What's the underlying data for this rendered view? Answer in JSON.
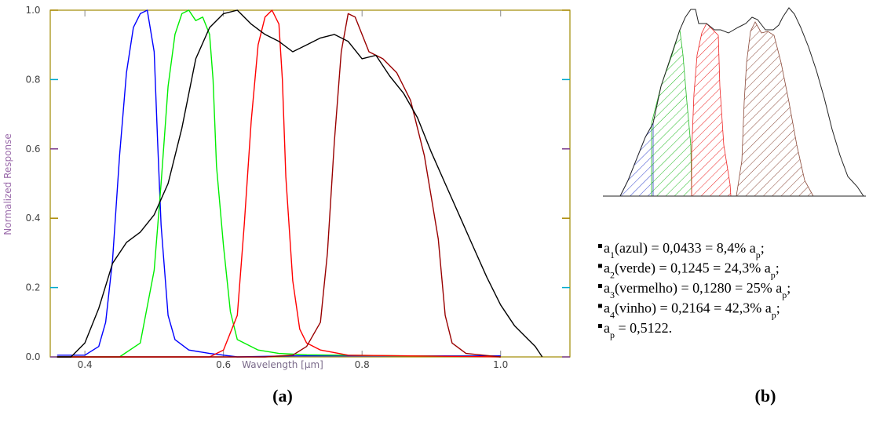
{
  "chart_data": [
    {
      "type": "line",
      "xlabel": "Wavelength [μm]",
      "ylabel": "Normalized Response",
      "xlim": [
        0.35,
        1.1
      ],
      "ylim": [
        0,
        1.0
      ],
      "x_ticks": [
        "0.4",
        "0.6",
        "0.8",
        "1.0"
      ],
      "y_ticks": [
        "0.0",
        "0.2",
        "0.4",
        "0.6",
        "0.8",
        "1.0"
      ],
      "grid": false,
      "series": [
        {
          "color": "#0000ff",
          "points": [
            [
              0.36,
              0.005
            ],
            [
              0.4,
              0.005
            ],
            [
              0.42,
              0.03
            ],
            [
              0.43,
              0.1
            ],
            [
              0.44,
              0.28
            ],
            [
              0.45,
              0.58
            ],
            [
              0.46,
              0.82
            ],
            [
              0.47,
              0.95
            ],
            [
              0.48,
              0.99
            ],
            [
              0.49,
              1.0
            ],
            [
              0.5,
              0.88
            ],
            [
              0.505,
              0.62
            ],
            [
              0.51,
              0.38
            ],
            [
              0.52,
              0.12
            ],
            [
              0.53,
              0.05
            ],
            [
              0.55,
              0.02
            ],
            [
              0.58,
              0.01
            ],
            [
              0.62,
              0.0
            ],
            [
              0.7,
              0.003
            ],
            [
              1.0,
              0.003
            ]
          ]
        },
        {
          "color": "#00ee00",
          "points": [
            [
              0.36,
              0.0
            ],
            [
              0.45,
              0.0
            ],
            [
              0.48,
              0.04
            ],
            [
              0.5,
              0.25
            ],
            [
              0.51,
              0.5
            ],
            [
              0.52,
              0.78
            ],
            [
              0.53,
              0.93
            ],
            [
              0.54,
              0.99
            ],
            [
              0.55,
              1.0
            ],
            [
              0.56,
              0.97
            ],
            [
              0.57,
              0.98
            ],
            [
              0.58,
              0.93
            ],
            [
              0.585,
              0.8
            ],
            [
              0.59,
              0.55
            ],
            [
              0.6,
              0.32
            ],
            [
              0.61,
              0.13
            ],
            [
              0.62,
              0.05
            ],
            [
              0.65,
              0.02
            ],
            [
              0.68,
              0.01
            ],
            [
              0.72,
              0.006
            ],
            [
              1.0,
              0.0
            ]
          ]
        },
        {
          "color": "#ff0000",
          "points": [
            [
              0.36,
              0.0
            ],
            [
              0.58,
              0.0
            ],
            [
              0.6,
              0.02
            ],
            [
              0.62,
              0.12
            ],
            [
              0.63,
              0.38
            ],
            [
              0.64,
              0.68
            ],
            [
              0.65,
              0.9
            ],
            [
              0.66,
              0.98
            ],
            [
              0.67,
              1.0
            ],
            [
              0.68,
              0.96
            ],
            [
              0.685,
              0.8
            ],
            [
              0.69,
              0.52
            ],
            [
              0.7,
              0.22
            ],
            [
              0.71,
              0.08
            ],
            [
              0.72,
              0.04
            ],
            [
              0.74,
              0.02
            ],
            [
              0.78,
              0.005
            ],
            [
              1.0,
              0.0
            ]
          ]
        },
        {
          "color": "#990000",
          "points": [
            [
              0.36,
              0.0
            ],
            [
              0.66,
              0.0
            ],
            [
              0.7,
              0.005
            ],
            [
              0.72,
              0.03
            ],
            [
              0.74,
              0.1
            ],
            [
              0.75,
              0.3
            ],
            [
              0.76,
              0.62
            ],
            [
              0.77,
              0.88
            ],
            [
              0.78,
              0.99
            ],
            [
              0.79,
              0.98
            ],
            [
              0.8,
              0.93
            ],
            [
              0.81,
              0.88
            ],
            [
              0.83,
              0.86
            ],
            [
              0.85,
              0.82
            ],
            [
              0.87,
              0.74
            ],
            [
              0.89,
              0.58
            ],
            [
              0.91,
              0.34
            ],
            [
              0.92,
              0.12
            ],
            [
              0.93,
              0.04
            ],
            [
              0.95,
              0.01
            ],
            [
              1.0,
              0.0
            ]
          ]
        },
        {
          "color": "#000000",
          "points": [
            [
              0.36,
              0.0
            ],
            [
              0.38,
              0.0
            ],
            [
              0.4,
              0.04
            ],
            [
              0.42,
              0.14
            ],
            [
              0.44,
              0.27
            ],
            [
              0.46,
              0.33
            ],
            [
              0.48,
              0.36
            ],
            [
              0.5,
              0.41
            ],
            [
              0.52,
              0.5
            ],
            [
              0.54,
              0.66
            ],
            [
              0.56,
              0.86
            ],
            [
              0.58,
              0.95
            ],
            [
              0.6,
              0.99
            ],
            [
              0.62,
              1.0
            ],
            [
              0.64,
              0.96
            ],
            [
              0.66,
              0.93
            ],
            [
              0.68,
              0.91
            ],
            [
              0.7,
              0.88
            ],
            [
              0.72,
              0.9
            ],
            [
              0.74,
              0.92
            ],
            [
              0.76,
              0.93
            ],
            [
              0.78,
              0.91
            ],
            [
              0.8,
              0.86
            ],
            [
              0.82,
              0.87
            ],
            [
              0.84,
              0.81
            ],
            [
              0.86,
              0.76
            ],
            [
              0.88,
              0.69
            ],
            [
              0.9,
              0.59
            ],
            [
              0.92,
              0.5
            ],
            [
              0.94,
              0.41
            ],
            [
              0.96,
              0.32
            ],
            [
              0.98,
              0.23
            ],
            [
              1.0,
              0.15
            ],
            [
              1.02,
              0.09
            ],
            [
              1.04,
              0.05
            ],
            [
              1.05,
              0.03
            ],
            [
              1.06,
              0.0
            ]
          ]
        }
      ]
    },
    {
      "type": "area",
      "shaded_regions": [
        {
          "name": "a1(azul)",
          "color": "#3344cc"
        },
        {
          "name": "a2(verde)",
          "color": "#22bb22"
        },
        {
          "name": "a3(vermelho)",
          "color": "#ee2222"
        },
        {
          "name": "a4(vinho)",
          "color": "#8b4a3a"
        }
      ]
    }
  ],
  "captions": {
    "a": "(a)",
    "b": "(b)"
  },
  "legend": [
    {
      "pre": "a",
      "sub": "1",
      "mid": "(azul) = 0,0433 = 8,4% a",
      "sub2": "p",
      "post": ";"
    },
    {
      "pre": "a",
      "sub": "2",
      "mid": "(verde) = 0,1245 = 24,3% a",
      "sub2": "p",
      "post": ";"
    },
    {
      "pre": "a",
      "sub": "3",
      "mid": "(vermelho) = 0,1280 = 25% a",
      "sub2": "p",
      "post": ";"
    },
    {
      "pre": "a",
      "sub": "4",
      "mid": "(vinho) = 0,2164 = 42,3% a",
      "sub2": "p",
      "post": ";"
    },
    {
      "pre": "a",
      "sub": "p",
      "mid": " = 0,5122.",
      "sub2": "",
      "post": ""
    }
  ]
}
